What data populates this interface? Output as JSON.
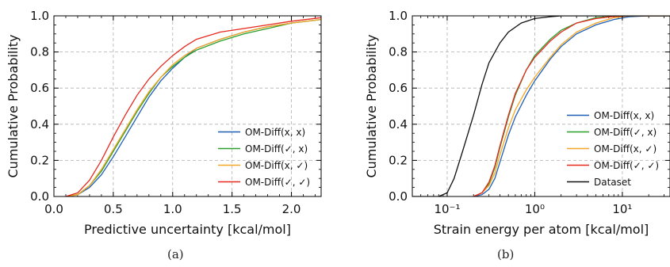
{
  "captions": [
    "(a)",
    "(b)"
  ],
  "chart_data": [
    {
      "type": "line",
      "panel": "(a)",
      "xlabel": "Predictive uncertainty [kcal/mol]",
      "ylabel": "Cumulative Probability",
      "xlim": [
        0.0,
        2.25
      ],
      "ylim": [
        0.0,
        1.0
      ],
      "x_scale": "linear",
      "xticks": [
        0.0,
        0.5,
        1.0,
        1.5,
        2.0
      ],
      "xtick_labels": [
        "0.0",
        "0.5",
        "1.0",
        "1.5",
        "2.0"
      ],
      "yticks": [
        0.0,
        0.2,
        0.4,
        0.6,
        0.8,
        1.0
      ],
      "ytick_labels": [
        "0.0",
        "0.2",
        "0.4",
        "0.6",
        "0.8",
        "1.0"
      ],
      "grid": true,
      "legend_position": "lower-right",
      "series": [
        {
          "name": "OM-Diff(x, x)",
          "color": "#1f5fb4",
          "x": [
            0.1,
            0.2,
            0.3,
            0.4,
            0.5,
            0.6,
            0.7,
            0.8,
            0.9,
            1.0,
            1.1,
            1.2,
            1.4,
            1.6,
            1.8,
            2.0,
            2.25
          ],
          "y": [
            0.0,
            0.01,
            0.05,
            0.12,
            0.22,
            0.33,
            0.44,
            0.55,
            0.64,
            0.71,
            0.77,
            0.82,
            0.87,
            0.91,
            0.94,
            0.96,
            0.98
          ]
        },
        {
          "name": "OM-Diff(✓, x)",
          "color": "#2ca02c",
          "x": [
            0.1,
            0.2,
            0.3,
            0.4,
            0.5,
            0.6,
            0.7,
            0.8,
            0.9,
            1.0,
            1.1,
            1.2,
            1.4,
            1.6,
            1.8,
            2.0,
            2.25
          ],
          "y": [
            0.0,
            0.01,
            0.06,
            0.14,
            0.25,
            0.36,
            0.47,
            0.57,
            0.66,
            0.72,
            0.77,
            0.81,
            0.86,
            0.9,
            0.93,
            0.96,
            0.98
          ]
        },
        {
          "name": "OM-Diff(x, ✓)",
          "color": "#f5a623",
          "x": [
            0.1,
            0.2,
            0.3,
            0.4,
            0.5,
            0.6,
            0.7,
            0.8,
            0.9,
            1.0,
            1.1,
            1.2,
            1.4,
            1.6,
            1.8,
            2.0,
            2.25
          ],
          "y": [
            0.0,
            0.01,
            0.06,
            0.15,
            0.26,
            0.37,
            0.48,
            0.58,
            0.66,
            0.73,
            0.78,
            0.82,
            0.87,
            0.91,
            0.94,
            0.96,
            0.98
          ]
        },
        {
          "name": "OM-Diff(✓, ✓)",
          "color": "#e8281e",
          "x": [
            0.1,
            0.2,
            0.3,
            0.4,
            0.5,
            0.6,
            0.7,
            0.8,
            0.9,
            1.0,
            1.1,
            1.2,
            1.4,
            1.6,
            1.8,
            2.0,
            2.25
          ],
          "y": [
            0.0,
            0.02,
            0.09,
            0.2,
            0.33,
            0.45,
            0.56,
            0.65,
            0.72,
            0.78,
            0.83,
            0.87,
            0.91,
            0.93,
            0.95,
            0.97,
            0.99
          ]
        }
      ]
    },
    {
      "type": "line",
      "panel": "(b)",
      "xlabel": "Strain energy per atom [kcal/mol]",
      "ylabel": "Cumulative Probability",
      "xlim": [
        0.04,
        35
      ],
      "ylim": [
        0.0,
        1.0
      ],
      "x_scale": "log",
      "xticks": [
        0.1,
        1,
        10
      ],
      "xtick_labels": [
        "10⁻¹",
        "10⁰",
        "10¹"
      ],
      "yticks": [
        0.0,
        0.2,
        0.4,
        0.6,
        0.8,
        1.0
      ],
      "ytick_labels": [
        "0.0",
        "0.2",
        "0.4",
        "0.6",
        "0.8",
        "1.0"
      ],
      "grid": true,
      "legend_position": "lower-right",
      "series": [
        {
          "name": "OM-Diff(x, x)",
          "color": "#1f5fb4",
          "x": [
            0.2,
            0.25,
            0.3,
            0.35,
            0.4,
            0.5,
            0.6,
            0.8,
            1.0,
            1.5,
            2.0,
            3.0,
            5.0,
            8.0,
            12,
            20,
            35
          ],
          "y": [
            0.0,
            0.01,
            0.04,
            0.1,
            0.19,
            0.34,
            0.44,
            0.56,
            0.64,
            0.76,
            0.83,
            0.9,
            0.95,
            0.98,
            0.995,
            1.0,
            1.0
          ]
        },
        {
          "name": "OM-Diff(✓, x)",
          "color": "#2ca02c",
          "x": [
            0.2,
            0.25,
            0.3,
            0.35,
            0.4,
            0.5,
            0.6,
            0.8,
            1.0,
            1.5,
            2.0,
            3.0,
            5.0,
            8.0,
            12,
            20,
            35
          ],
          "y": [
            0.0,
            0.02,
            0.07,
            0.16,
            0.27,
            0.44,
            0.56,
            0.7,
            0.78,
            0.87,
            0.92,
            0.96,
            0.99,
            0.998,
            1.0,
            1.0,
            1.0
          ]
        },
        {
          "name": "OM-Diff(x, ✓)",
          "color": "#f5a623",
          "x": [
            0.2,
            0.25,
            0.3,
            0.35,
            0.4,
            0.5,
            0.6,
            0.8,
            1.0,
            1.5,
            2.0,
            3.0,
            5.0,
            8.0,
            12,
            20,
            35
          ],
          "y": [
            0.0,
            0.02,
            0.06,
            0.13,
            0.23,
            0.38,
            0.48,
            0.59,
            0.66,
            0.77,
            0.84,
            0.91,
            0.96,
            0.99,
            1.0,
            1.0,
            1.0
          ]
        },
        {
          "name": "OM-Diff(✓, ✓)",
          "color": "#e8281e",
          "x": [
            0.2,
            0.25,
            0.3,
            0.35,
            0.4,
            0.5,
            0.6,
            0.8,
            1.0,
            1.5,
            2.0,
            3.0,
            5.0,
            8.0,
            12,
            20,
            35
          ],
          "y": [
            0.0,
            0.02,
            0.08,
            0.17,
            0.28,
            0.45,
            0.57,
            0.7,
            0.77,
            0.86,
            0.91,
            0.96,
            0.985,
            0.997,
            1.0,
            1.0,
            1.0
          ]
        },
        {
          "name": "Dataset",
          "color": "#111111",
          "x": [
            0.04,
            0.08,
            0.1,
            0.12,
            0.15,
            0.2,
            0.25,
            0.3,
            0.4,
            0.5,
            0.7,
            1.0,
            1.5,
            2.0,
            3.0,
            5.0,
            35
          ],
          "y": [
            0.0,
            0.0,
            0.02,
            0.1,
            0.25,
            0.45,
            0.62,
            0.74,
            0.85,
            0.91,
            0.96,
            0.985,
            0.995,
            1.0,
            1.0,
            1.0,
            1.0
          ]
        }
      ]
    }
  ]
}
